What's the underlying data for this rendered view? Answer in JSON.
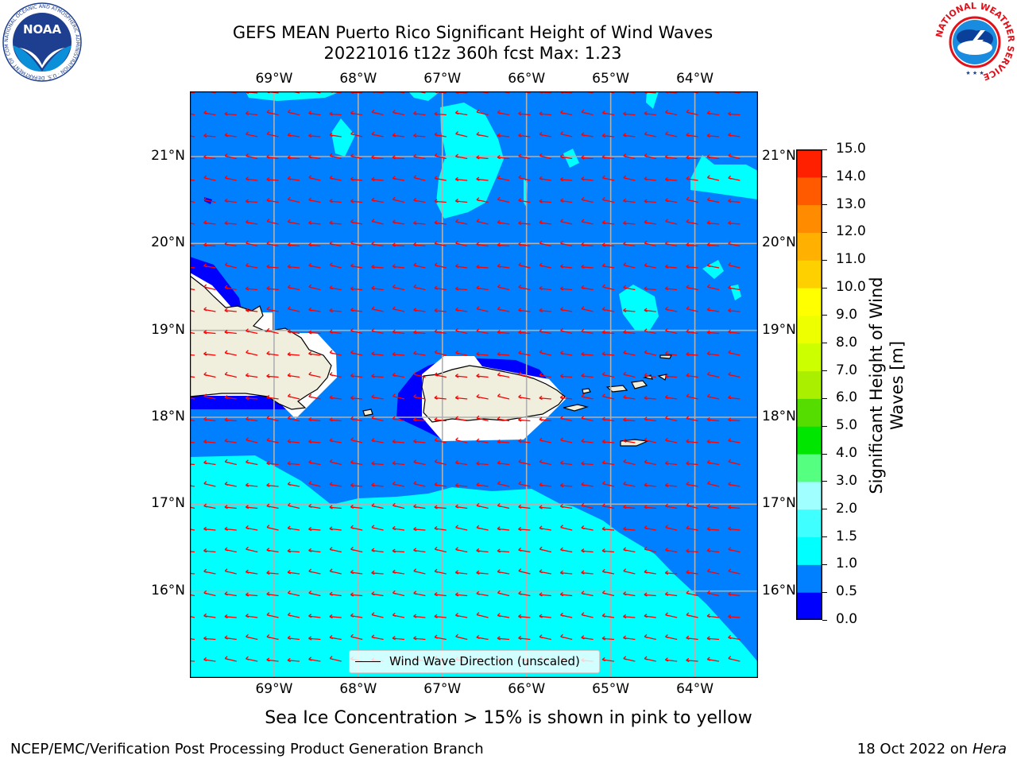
{
  "title": {
    "line1": "GEFS MEAN Puerto Rico Significant Height of Wind Waves",
    "line2": "20221016 t12z 360h fcst   Max: 1.23"
  },
  "logos": {
    "noaa_text": "NOAA",
    "noaa_ring_text": "NATIONAL OCEANIC AND ATMOSPHERIC ADMINISTRATION · U.S. DEPARTMENT OF COMMERCE",
    "nws_ring_text": "NATIONAL WEATHER SERVICE"
  },
  "map": {
    "extent": {
      "lon_min": -70.0,
      "lon_max": -63.25,
      "lat_min": 15.0,
      "lat_max": 21.75
    },
    "lon_ticks": [
      {
        "value": -69,
        "label": "69°W"
      },
      {
        "value": -68,
        "label": "68°W"
      },
      {
        "value": -67,
        "label": "67°W"
      },
      {
        "value": -66,
        "label": "66°W"
      },
      {
        "value": -65,
        "label": "65°W"
      },
      {
        "value": -64,
        "label": "64°W"
      }
    ],
    "lat_ticks": [
      {
        "value": 21,
        "label": "21°N"
      },
      {
        "value": 20,
        "label": "20°N"
      },
      {
        "value": 19,
        "label": "19°N"
      },
      {
        "value": 18,
        "label": "18°N"
      },
      {
        "value": 17,
        "label": "17°N"
      },
      {
        "value": 16,
        "label": "16°N"
      }
    ],
    "gridlines": true,
    "background_level_color": "#0080ff",
    "arrow_color": "#ff0000",
    "legend_label": "Wind Wave Direction (unscaled)",
    "legend_placement": "bottom-center"
  },
  "colorbar": {
    "label": "Significant Height of Wind Waves [m]",
    "label_line1": "Significant Height of Wind",
    "label_line2": "Waves [m]",
    "levels": [
      0.0,
      0.5,
      1.0,
      1.5,
      2.0,
      3.0,
      4.0,
      5.0,
      6.0,
      7.0,
      8.0,
      9.0,
      10.0,
      11.0,
      12.0,
      13.0,
      14.0,
      15.0
    ],
    "tick_labels": [
      "0.0",
      "0.5",
      "1.0",
      "1.5",
      "2.0",
      "3.0",
      "4.0",
      "5.0",
      "6.0",
      "7.0",
      "8.0",
      "9.0",
      "10.0",
      "11.0",
      "12.0",
      "13.0",
      "14.0",
      "15.0"
    ],
    "colors": [
      "#0000ff",
      "#0080ff",
      "#00ffff",
      "#40ffff",
      "#a0ffff",
      "#55ff80",
      "#00e600",
      "#55dd00",
      "#aaee00",
      "#ccff00",
      "#eeff00",
      "#ffff00",
      "#ffd000",
      "#ffb000",
      "#ff8c00",
      "#ff5a00",
      "#ff2000"
    ]
  },
  "footnote": "Sea Ice Concentration > 15% is shown in pink to yellow",
  "footer": {
    "left": "NCEP/EMC/Verification Post Processing Product Generation Branch",
    "right_date": "18 Oct 2022 on ",
    "right_machine": "Hera"
  }
}
